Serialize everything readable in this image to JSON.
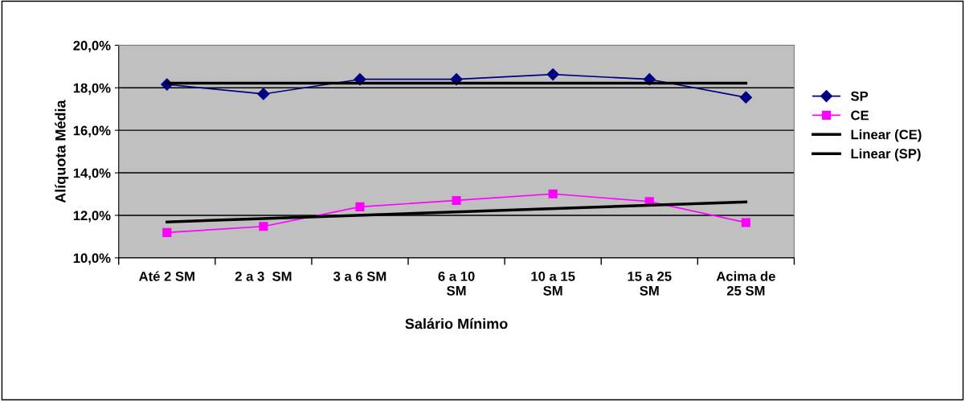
{
  "chart_data": {
    "type": "line",
    "xlabel": "Salário Mínimo",
    "ylabel": "Alíquota Média",
    "categories": [
      "Até 2 SM",
      "2 a 3  SM",
      "3 a 6 SM",
      "6 a 10\nSM",
      "10 a 15\nSM",
      "15 a 25\nSM",
      "Acima de\n25 SM"
    ],
    "series": [
      {
        "name": "SP",
        "color": "#000080",
        "marker": "diamond",
        "values": [
          18.16,
          17.71,
          18.4,
          18.4,
          18.63,
          18.4,
          17.55
        ]
      },
      {
        "name": "CE",
        "color": "#ff00ff",
        "marker": "square",
        "values": [
          11.19,
          11.48,
          12.4,
          12.7,
          13.01,
          12.65,
          11.66
        ]
      },
      {
        "name": "Linear (CE)",
        "color": "#000000",
        "marker": "none",
        "values": [
          11.69,
          null,
          null,
          null,
          null,
          null,
          12.63
        ]
      },
      {
        "name": "Linear (SP)",
        "color": "#000000",
        "marker": "none",
        "values": [
          18.22,
          null,
          null,
          null,
          null,
          null,
          18.22
        ]
      }
    ],
    "ylim": [
      10,
      20
    ],
    "yticks": [
      {
        "value": 10,
        "label": "10,0%"
      },
      {
        "value": 12,
        "label": "12,0%"
      },
      {
        "value": 14,
        "label": "14,0%"
      },
      {
        "value": 16,
        "label": "16,0%"
      },
      {
        "value": 18,
        "label": "18,0%"
      },
      {
        "value": 20,
        "label": "20,0%"
      }
    ],
    "grid": "y",
    "legend": "right"
  }
}
